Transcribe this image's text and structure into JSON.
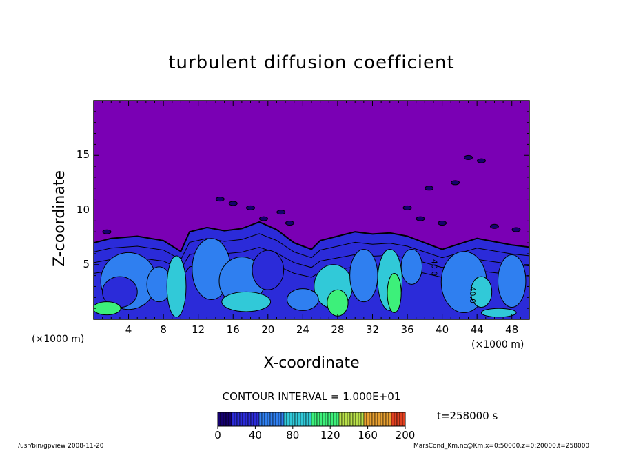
{
  "chart_data": {
    "type": "heatmap",
    "title": "turbulent diffusion coefficient",
    "xlabel": "X-coordinate",
    "ylabel": "Z-coordinate",
    "x_unit": "(×1000 m)",
    "x_unit_right": "(×1000 m)",
    "x_ticks": [
      4,
      8,
      12,
      16,
      20,
      24,
      28,
      32,
      36,
      40,
      44,
      48
    ],
    "y_ticks": [
      5,
      10,
      15
    ],
    "xlim": [
      0,
      50
    ],
    "ylim": [
      0,
      20
    ],
    "contour_interval": "CONTOUR INTERVAL = 1.000E+01",
    "time_label": "t=258000 s",
    "colorbar": {
      "ticks": [
        "0",
        "40",
        "80",
        "120",
        "160",
        "200"
      ],
      "range": [
        0,
        200
      ],
      "colors": [
        "#14006e",
        "#2b2bd9",
        "#2f7ff0",
        "#31c9d8",
        "#3df07a",
        "#b8e04a",
        "#e8a030",
        "#e04020"
      ]
    },
    "contour_labels": [
      "40.0",
      "40.0"
    ],
    "background_color": "#7a00b4",
    "footer_left": "/usr/bin/gpview   2008-11-20",
    "footer_right": "MarsCond_Km.nc@Km,x=0:50000,z=0:20000,t=258000"
  }
}
